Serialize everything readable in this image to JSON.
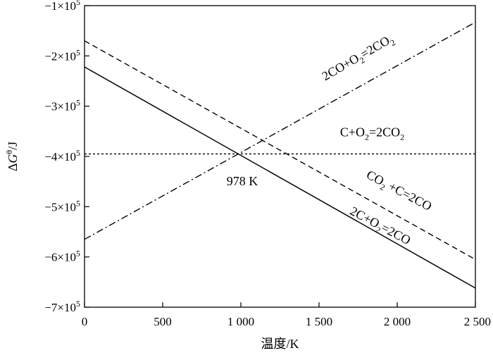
{
  "chart_data": {
    "type": "line",
    "title": "",
    "xlabel": "温度/K",
    "ylabel": {
      "prefix": "Δ",
      "symbol": "G",
      "sup": "θ",
      "suffix": "/J"
    },
    "xlim": [
      0,
      2500
    ],
    "ylim": [
      -700000,
      -100000
    ],
    "xticks": [
      {
        "value": 0,
        "label": "0"
      },
      {
        "value": 500,
        "label": "500"
      },
      {
        "value": 1000,
        "label": "1 000"
      },
      {
        "value": 1500,
        "label": "1 500"
      },
      {
        "value": 2000,
        "label": "2 000"
      },
      {
        "value": 2500,
        "label": "2 500"
      }
    ],
    "yticks": [
      {
        "value": -100000,
        "mant": "−1×10",
        "exp": "5"
      },
      {
        "value": -200000,
        "mant": "−2×10",
        "exp": "5"
      },
      {
        "value": -300000,
        "mant": "−3×10",
        "exp": "5"
      },
      {
        "value": -400000,
        "mant": "−4×10",
        "exp": "5"
      },
      {
        "value": -500000,
        "mant": "−5×10",
        "exp": "5"
      },
      {
        "value": -600000,
        "mant": "−6×10",
        "exp": "5"
      },
      {
        "value": -700000,
        "mant": "−7×10",
        "exp": "5"
      }
    ],
    "series": [
      {
        "key": "c_o2_co",
        "style": "solid",
        "x": [
          0,
          2500
        ],
        "y": [
          -222000,
          -662000
        ],
        "label": {
          "parts": [
            [
              "2C+O",
              ""
            ],
            [
              "2",
              "sub"
            ],
            [
              "=2CO",
              ""
            ]
          ],
          "x": 1880,
          "y": -545000,
          "angle": 28
        }
      },
      {
        "key": "co2_c_co",
        "style": "dashed",
        "x": [
          0,
          2500
        ],
        "y": [
          -170000,
          -605000
        ],
        "label": {
          "parts": [
            [
              "CO",
              ""
            ],
            [
              "2",
              "sub"
            ],
            [
              " +C=2CO",
              ""
            ]
          ],
          "x": 2000,
          "y": -475000,
          "angle": 28
        }
      },
      {
        "key": "co_o2_co2",
        "style": "dashdot",
        "x": [
          0,
          2500
        ],
        "y": [
          -565000,
          -133000
        ],
        "label": {
          "parts": [
            [
              "2CO+O",
              ""
            ],
            [
              "2",
              "sub"
            ],
            [
              "=2CO",
              ""
            ],
            [
              "2",
              "sub"
            ]
          ],
          "x": 1760,
          "y": -210000,
          "angle": -30
        }
      },
      {
        "key": "c_o2_co2",
        "style": "dotted",
        "x": [
          0,
          2500
        ],
        "y": [
          -395000,
          -395000
        ],
        "label": {
          "parts": [
            [
              "C+O",
              ""
            ],
            [
              "2",
              "sub"
            ],
            [
              "=2CO",
              ""
            ],
            [
              "2",
              "sub"
            ]
          ],
          "x": 1840,
          "y": -360000,
          "angle": 0
        }
      }
    ],
    "annotations": [
      {
        "text": "978 K",
        "x": 1000,
        "y": -432000
      }
    ],
    "grid": false,
    "legend": "none"
  }
}
